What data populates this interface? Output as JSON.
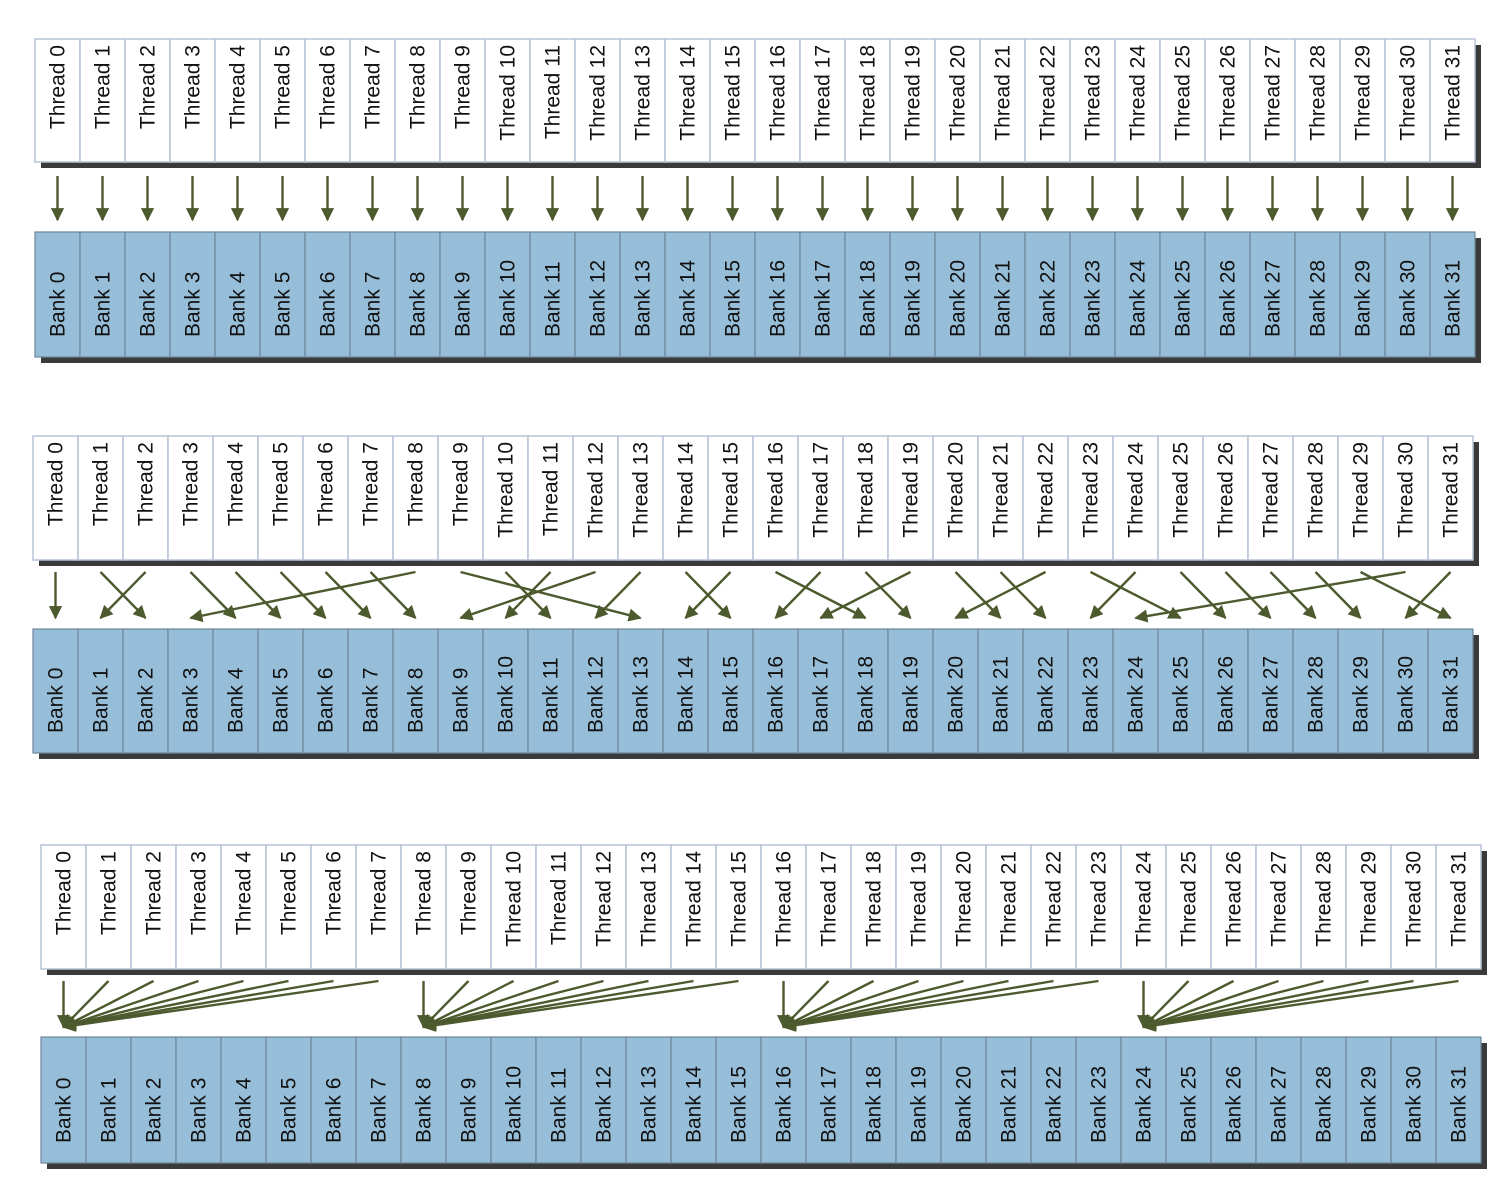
{
  "colors": {
    "thread_fill": "#ffffff",
    "thread_border": "#b7c3d6",
    "bank_fill": "#97bed9",
    "bank_border": "#6e8799",
    "shadow": "#3a3a3a",
    "arrow": "#4c5a2e"
  },
  "thread_labels": [
    "Thread 0",
    "Thread 1",
    "Thread 2",
    "Thread 3",
    "Thread 4",
    "Thread 5",
    "Thread 6",
    "Thread 7",
    "Thread 8",
    "Thread 9",
    "Thread 10",
    "Thread 11",
    "Thread 12",
    "Thread 13",
    "Thread 14",
    "Thread 15",
    "Thread 16",
    "Thread 17",
    "Thread 18",
    "Thread 19",
    "Thread 20",
    "Thread 21",
    "Thread 22",
    "Thread 23",
    "Thread 24",
    "Thread 25",
    "Thread 26",
    "Thread 27",
    "Thread 28",
    "Thread 29",
    "Thread 30",
    "Thread 31"
  ],
  "bank_labels": [
    "Bank 0",
    "Bank 1",
    "Bank 2",
    "Bank 3",
    "Bank 4",
    "Bank 5",
    "Bank 6",
    "Bank 7",
    "Bank 8",
    "Bank 9",
    "Bank 10",
    "Bank 11",
    "Bank 12",
    "Bank 13",
    "Bank 14",
    "Bank 15",
    "Bank 16",
    "Bank 17",
    "Bank 18",
    "Bank 19",
    "Bank 20",
    "Bank 21",
    "Bank 22",
    "Bank 23",
    "Bank 24",
    "Bank 25",
    "Bank 26",
    "Bank 27",
    "Bank 28",
    "Bank 29",
    "Bank 30",
    "Bank 31"
  ],
  "panels": [
    {
      "name": "linear-mapping",
      "thread_to_bank": [
        0,
        1,
        2,
        3,
        4,
        5,
        6,
        7,
        8,
        9,
        10,
        11,
        12,
        13,
        14,
        15,
        16,
        17,
        18,
        19,
        20,
        21,
        22,
        23,
        24,
        25,
        26,
        27,
        28,
        29,
        30,
        31
      ]
    },
    {
      "name": "random-permutation",
      "thread_to_bank": [
        0,
        2,
        1,
        4,
        5,
        6,
        7,
        8,
        3,
        13,
        11,
        10,
        9,
        12,
        15,
        14,
        18,
        16,
        19,
        17,
        21,
        22,
        20,
        25,
        23,
        26,
        27,
        28,
        29,
        31,
        24,
        30
      ]
    },
    {
      "name": "broadcast-conflict",
      "thread_to_bank": [
        0,
        0,
        0,
        0,
        0,
        0,
        0,
        0,
        8,
        8,
        8,
        8,
        8,
        8,
        8,
        8,
        16,
        16,
        16,
        16,
        16,
        16,
        16,
        16,
        24,
        24,
        24,
        24,
        24,
        24,
        24,
        24
      ]
    }
  ]
}
